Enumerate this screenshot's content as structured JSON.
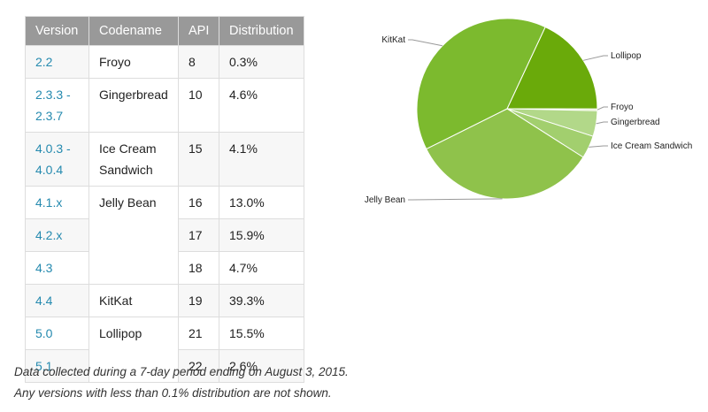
{
  "table": {
    "headers": [
      "Version",
      "Codename",
      "API",
      "Distribution"
    ],
    "rows": [
      {
        "version": "2.2",
        "codename": "Froyo",
        "api": "8",
        "distribution": "0.3%"
      },
      {
        "version": "2.3.3 - 2.3.7",
        "codename": "Gingerbread",
        "api": "10",
        "distribution": "4.6%"
      },
      {
        "version": "4.0.3 - 4.0.4",
        "codename": "Ice Cream Sandwich",
        "api": "15",
        "distribution": "4.1%"
      },
      {
        "version": "4.1.x",
        "codename": "Jelly Bean",
        "api": "16",
        "distribution": "13.0%"
      },
      {
        "version": "4.2.x",
        "codename": "",
        "api": "17",
        "distribution": "15.9%"
      },
      {
        "version": "4.3",
        "codename": "",
        "api": "18",
        "distribution": "4.7%"
      },
      {
        "version": "4.4",
        "codename": "KitKat",
        "api": "19",
        "distribution": "39.3%"
      },
      {
        "version": "5.0",
        "codename": "Lollipop",
        "api": "21",
        "distribution": "15.5%"
      },
      {
        "version": "5.1",
        "codename": "",
        "api": "22",
        "distribution": "2.6%"
      }
    ]
  },
  "notes": [
    "Data collected during a 7-day period ending on August 3, 2015.",
    "Any versions with less than 0.1% distribution are not shown."
  ],
  "chart_data": {
    "type": "pie",
    "legend": "labels-outside",
    "slices": [
      {
        "label": "Lollipop",
        "value": 18.1,
        "color": "#6aaa0a"
      },
      {
        "label": "Froyo",
        "value": 0.3,
        "color": "#dbe9b8"
      },
      {
        "label": "Gingerbread",
        "value": 4.6,
        "color": "#b2d889"
      },
      {
        "label": "Ice Cream Sandwich",
        "value": 4.1,
        "color": "#a2cf6e"
      },
      {
        "label": "Jelly Bean",
        "value": 33.6,
        "color": "#8fc24b"
      },
      {
        "label": "KitKat",
        "value": 39.3,
        "color": "#7cba2e"
      }
    ]
  },
  "colors": {
    "header_bg": "#999999",
    "version_link": "#258aaf",
    "leader_line": "#999999"
  }
}
